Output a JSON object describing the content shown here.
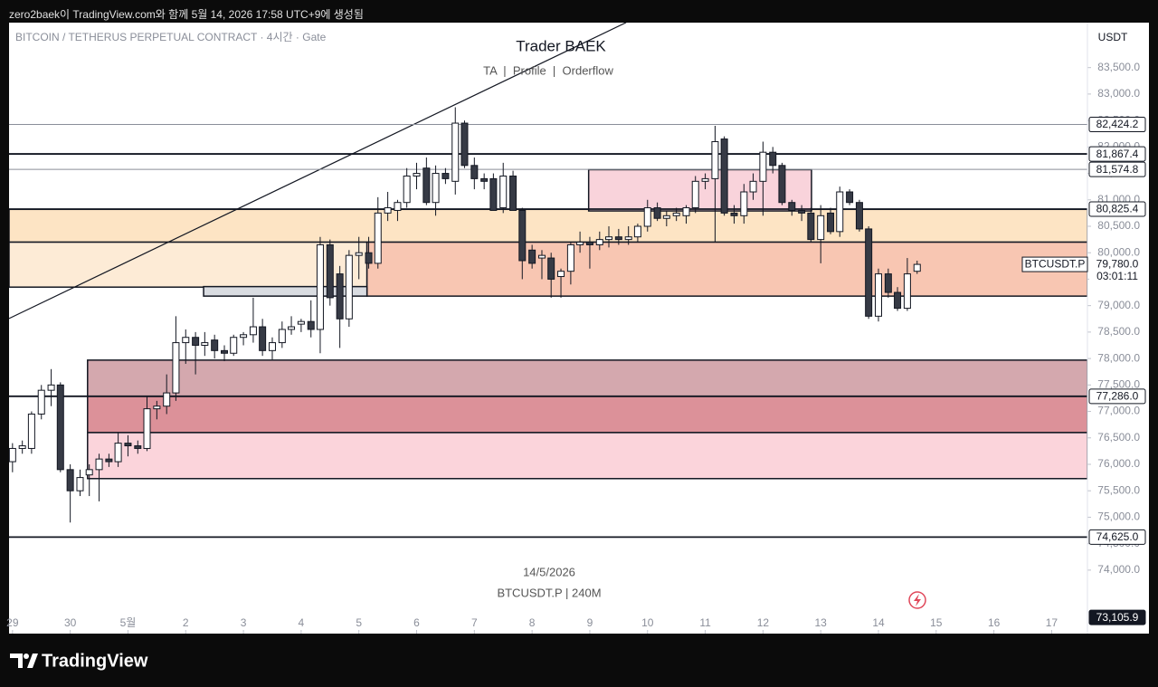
{
  "header": "zero2baek이 TradingView.com와 함께 5월 14, 2026 17:58 UTC+9에 생성됨",
  "footer_logo": "TradingView",
  "chart_data": {
    "type": "candlestick",
    "symbol_description": "BITCOIN / TETHERUS PERPETUAL CONTRACT · 4시간 · Gate",
    "title": "Trader BAEK",
    "subtitle": "TA  |  Profile  |  Orderflow",
    "currency": "USDT",
    "watermark_date": "14/5/2026",
    "watermark_symbol": "BTCUSDT.P | 240M",
    "xlim": [
      28.94,
      47.62
    ],
    "ylim": [
      72800,
      84350
    ],
    "xticks": [
      {
        "value": 29,
        "label": "29"
      },
      {
        "value": 30,
        "label": "30"
      },
      {
        "value": 31,
        "label": "5월"
      },
      {
        "value": 32,
        "label": "2"
      },
      {
        "value": 33,
        "label": "3"
      },
      {
        "value": 34,
        "label": "4"
      },
      {
        "value": 35,
        "label": "5"
      },
      {
        "value": 36,
        "label": "6"
      },
      {
        "value": 37,
        "label": "7"
      },
      {
        "value": 38,
        "label": "8"
      },
      {
        "value": 39,
        "label": "9"
      },
      {
        "value": 40,
        "label": "10"
      },
      {
        "value": 41,
        "label": "11"
      },
      {
        "value": 42,
        "label": "12"
      },
      {
        "value": 43,
        "label": "13"
      },
      {
        "value": 44,
        "label": "14"
      },
      {
        "value": 45,
        "label": "15"
      },
      {
        "value": 46,
        "label": "16"
      },
      {
        "value": 47,
        "label": "17"
      }
    ],
    "yticks": [
      {
        "value": 74000,
        "label": "74,000.0"
      },
      {
        "value": 74500,
        "label": "74,500.0"
      },
      {
        "value": 75000,
        "label": "75,000.0"
      },
      {
        "value": 75500,
        "label": "75,500.0"
      },
      {
        "value": 76000,
        "label": "76,000.0"
      },
      {
        "value": 76500,
        "label": "76,500.0"
      },
      {
        "value": 77000,
        "label": "77,000.0"
      },
      {
        "value": 77500,
        "label": "77,500.0"
      },
      {
        "value": 78000,
        "label": "78,000.0"
      },
      {
        "value": 78500,
        "label": "78,500.0"
      },
      {
        "value": 79000,
        "label": "79,000.0"
      },
      {
        "value": 79500,
        "label": "79,500.0"
      },
      {
        "value": 80000,
        "label": "80,000.0"
      },
      {
        "value": 80500,
        "label": "80,500.0"
      },
      {
        "value": 81000,
        "label": "81,000.0"
      },
      {
        "value": 81500,
        "label": "81,500.0"
      },
      {
        "value": 82000,
        "label": "82,000.0"
      },
      {
        "value": 82500,
        "label": "82,500.0"
      },
      {
        "value": 83000,
        "label": "83,000.0"
      },
      {
        "value": 83500,
        "label": "83,500.0"
      }
    ],
    "up_color": "#ffffff",
    "down_color": "#363a45",
    "wick_color": "#131722",
    "candles": {
      "x": [
        29,
        29.17,
        29.33,
        29.5,
        29.67,
        29.83,
        30,
        30.17,
        30.33,
        30.5,
        30.67,
        30.83,
        31,
        31.17,
        31.33,
        31.5,
        31.67,
        31.83,
        32,
        32.17,
        32.33,
        32.5,
        32.67,
        32.83,
        33,
        33.17,
        33.33,
        33.5,
        33.67,
        33.83,
        34,
        34.17,
        34.33,
        34.5,
        34.67,
        34.83,
        35,
        35.17,
        35.33,
        35.5,
        35.67,
        35.83,
        36,
        36.17,
        36.33,
        36.5,
        36.67,
        36.83,
        37,
        37.17,
        37.33,
        37.5,
        37.67,
        37.83,
        38,
        38.17,
        38.33,
        38.5,
        38.67,
        38.83,
        39,
        39.17,
        39.33,
        39.5,
        39.67,
        39.83,
        40,
        40.17,
        40.33,
        40.5,
        40.67,
        40.83,
        41,
        41.17,
        41.33,
        41.5,
        41.67,
        41.83,
        42,
        42.17,
        42.33,
        42.5,
        42.67,
        42.83,
        43,
        43.17,
        43.33,
        43.5,
        43.67,
        43.83,
        44,
        44.17,
        44.33,
        44.5,
        44.67
      ],
      "open": [
        76050,
        76300,
        76300,
        76950,
        77400,
        77500,
        75900,
        75500,
        75800,
        75900,
        76100,
        76050,
        76400,
        76350,
        76300,
        77050,
        77100,
        77350,
        78300,
        78400,
        78250,
        78350,
        78150,
        78100,
        78400,
        78450,
        78600,
        78150,
        78300,
        78550,
        78650,
        78700,
        78550,
        80150,
        79600,
        78750,
        79950,
        80000,
        79800,
        80750,
        80800,
        80950,
        81450,
        81600,
        80950,
        81500,
        81350,
        82450,
        81650,
        81400,
        81400,
        80850,
        81450,
        80800,
        80050,
        79900,
        79900,
        79550,
        79650,
        80150,
        80200,
        80150,
        80250,
        80300,
        80250,
        80300,
        80500,
        80850,
        80650,
        80700,
        80700,
        80850,
        81350,
        81400,
        82150,
        80750,
        80700,
        81150,
        81350,
        81900,
        81650,
        80950,
        80800,
        80750,
        80250,
        80750,
        80400,
        81150,
        80950,
        80450,
        78800,
        79600,
        79250,
        78950,
        79650
      ],
      "high": [
        76400,
        76450,
        77000,
        77500,
        77800,
        77550,
        76000,
        75900,
        76000,
        76200,
        76200,
        76600,
        76550,
        76450,
        77300,
        77200,
        77700,
        78800,
        78550,
        78500,
        78500,
        78450,
        78250,
        78450,
        78500,
        79150,
        78750,
        78400,
        78700,
        78800,
        78750,
        79100,
        80300,
        80250,
        79750,
        80050,
        80300,
        80300,
        81050,
        81150,
        81000,
        81600,
        81700,
        81800,
        81650,
        81600,
        82750,
        82500,
        81800,
        81500,
        81500,
        81700,
        81550,
        80850,
        80150,
        80050,
        80000,
        79700,
        80200,
        80400,
        80300,
        80400,
        80500,
        80450,
        80500,
        80550,
        81000,
        80950,
        80800,
        80850,
        80900,
        81450,
        81500,
        82400,
        82200,
        80900,
        81300,
        81500,
        82100,
        82000,
        81700,
        81000,
        80900,
        80850,
        80900,
        80850,
        81250,
        81200,
        81000,
        80500,
        79700,
        79700,
        79350,
        79900,
        79850
      ],
      "low": [
        75850,
        76200,
        76200,
        76850,
        77100,
        75850,
        74900,
        75400,
        75400,
        75300,
        75950,
        75950,
        76150,
        76200,
        76250,
        76850,
        76950,
        77200,
        77900,
        77700,
        78050,
        78000,
        77950,
        78050,
        78250,
        78300,
        78050,
        77980,
        78200,
        78450,
        78500,
        78400,
        78100,
        79000,
        78200,
        78600,
        79500,
        79700,
        79700,
        80600,
        80600,
        80850,
        81200,
        80900,
        80700,
        81300,
        81100,
        81600,
        81200,
        81200,
        80800,
        80750,
        80800,
        79500,
        79700,
        79500,
        79150,
        79150,
        79400,
        80000,
        79700,
        80050,
        80100,
        80150,
        80150,
        80200,
        80400,
        80600,
        80500,
        80600,
        80550,
        80750,
        81200,
        80200,
        80700,
        80550,
        80550,
        81000,
        80700,
        81500,
        80900,
        80700,
        80600,
        80200,
        79800,
        80350,
        80300,
        80900,
        80400,
        78750,
        78700,
        79150,
        78900,
        78900,
        79600
      ],
      "close": [
        76300,
        76350,
        76950,
        77400,
        77500,
        75900,
        75500,
        75750,
        75900,
        76100,
        76050,
        76400,
        76350,
        76300,
        77050,
        77100,
        77350,
        78300,
        78400,
        78250,
        78300,
        78150,
        78100,
        78400,
        78450,
        78600,
        78150,
        78300,
        78550,
        78600,
        78700,
        78550,
        80150,
        79150,
        78750,
        79950,
        80000,
        79800,
        80750,
        80850,
        80950,
        81450,
        81500,
        80950,
        81500,
        81400,
        82450,
        81650,
        81400,
        81350,
        80800,
        81450,
        80800,
        79850,
        79800,
        79950,
        79500,
        79650,
        80150,
        80200,
        80150,
        80250,
        80300,
        80250,
        80300,
        80500,
        80850,
        80650,
        80700,
        80750,
        80850,
        81350,
        81400,
        82100,
        80750,
        80700,
        81150,
        81350,
        81900,
        81650,
        80950,
        80800,
        80750,
        80250,
        80700,
        80400,
        81150,
        80950,
        80450,
        78800,
        79600,
        79250,
        78950,
        79600,
        79780
      ]
    },
    "zones": [
      {
        "x0": 28.94,
        "x1": 47.62,
        "top": 80820,
        "bottom": 80200,
        "color": "#fde4c4"
      },
      {
        "x0": 28.94,
        "x1": 35.14,
        "top": 80200,
        "bottom": 79350,
        "color": "#fdebd6"
      },
      {
        "x0": 35.14,
        "x1": 47.62,
        "top": 80200,
        "bottom": 79180,
        "color": "#f8c6b2"
      },
      {
        "x0": 32.31,
        "x1": 35.14,
        "top": 79360,
        "bottom": 79180,
        "color": "#d9dce1"
      },
      {
        "x0": 38.98,
        "x1": 42.84,
        "top": 81570,
        "bottom": 80790,
        "color": "#f9d3db"
      },
      {
        "x0": 30.3,
        "x1": 47.62,
        "top": 77970,
        "bottom": 77286,
        "color": "#d4a8ae"
      },
      {
        "x0": 30.3,
        "x1": 47.62,
        "top": 77286,
        "bottom": 76600,
        "color": "#dc9199"
      },
      {
        "x0": 30.3,
        "x1": 47.62,
        "top": 76600,
        "bottom": 75730,
        "color": "#fbd4db"
      }
    ],
    "levels": [
      {
        "value": 82424.2,
        "label": "82,424.2",
        "color": "#8a8e99",
        "line": true,
        "fill": "#ffffff"
      },
      {
        "value": 81867.4,
        "label": "81,867.4",
        "color": "#131722",
        "line": true,
        "fill": "#ffffff"
      },
      {
        "value": 81574.8,
        "label": "81,574.8",
        "color": "#8a8e99",
        "line": true,
        "fill": "#ffffff"
      },
      {
        "value": 80825.4,
        "label": "80,825.4",
        "color": "#131722",
        "line": true,
        "fill": "#ffffff"
      },
      {
        "value": 77286,
        "label": "77,286.0",
        "color": "#131722",
        "line": true,
        "fill": "#ffffff"
      },
      {
        "value": 74625,
        "label": "74,625.0",
        "color": "#131722",
        "line": true,
        "fill": "#ffffff"
      },
      {
        "value": 73105.9,
        "label": "73,105.9",
        "color": "#131722",
        "line": false,
        "fill": "#131722"
      }
    ],
    "trendline": {
      "x": [
        28.94,
        39.63
      ],
      "y": [
        78757,
        84352
      ]
    },
    "last_price": {
      "value": 79780,
      "label": "79,780.0",
      "symbol": "BTCUSDT.P",
      "countdown": "03:01:11"
    }
  }
}
